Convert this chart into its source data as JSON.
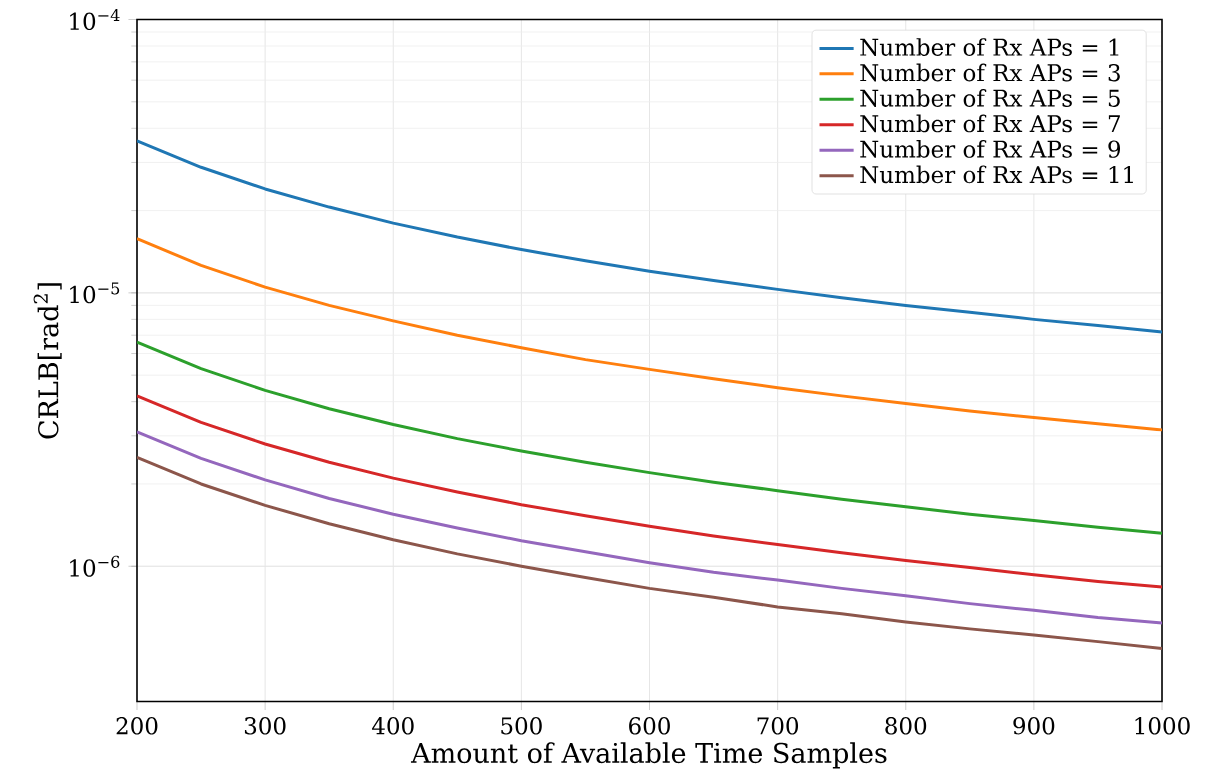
{
  "chart_data": {
    "type": "line",
    "xlabel": "Amount of Available Time Samples",
    "ylabel": "CRLB[rad$^{2}$]",
    "x": [
      200,
      250,
      300,
      350,
      400,
      450,
      500,
      550,
      600,
      650,
      700,
      750,
      800,
      850,
      900,
      950,
      1000
    ],
    "series": [
      {
        "name": "Number of Rx APs = 1",
        "color": "#1f77b4",
        "values": [
          3.6e-05,
          2.88e-05,
          2.4e-05,
          2.06e-05,
          1.8e-05,
          1.6e-05,
          1.44e-05,
          1.31e-05,
          1.2e-05,
          1.11e-05,
          1.03e-05,
          9.6e-06,
          9e-06,
          8.5e-06,
          8e-06,
          7.6e-06,
          7.2e-06
        ]
      },
      {
        "name": "Number of Rx APs = 3",
        "color": "#ff7f0e",
        "values": [
          1.58e-05,
          1.26e-05,
          1.05e-05,
          9e-06,
          7.9e-06,
          7e-06,
          6.3e-06,
          5.7e-06,
          5.25e-06,
          4.85e-06,
          4.5e-06,
          4.2e-06,
          3.94e-06,
          3.7e-06,
          3.5e-06,
          3.32e-06,
          3.15e-06
        ]
      },
      {
        "name": "Number of Rx APs = 5",
        "color": "#2ca02c",
        "values": [
          6.6e-06,
          5.28e-06,
          4.4e-06,
          3.77e-06,
          3.3e-06,
          2.93e-06,
          2.64e-06,
          2.4e-06,
          2.2e-06,
          2.03e-06,
          1.89e-06,
          1.76e-06,
          1.65e-06,
          1.55e-06,
          1.47e-06,
          1.39e-06,
          1.32e-06
        ]
      },
      {
        "name": "Number of Rx APs = 7",
        "color": "#d62728",
        "values": [
          4.2e-06,
          3.36e-06,
          2.8e-06,
          2.4e-06,
          2.1e-06,
          1.87e-06,
          1.68e-06,
          1.53e-06,
          1.4e-06,
          1.29e-06,
          1.2e-06,
          1.12e-06,
          1.05e-06,
          9.9e-07,
          9.3e-07,
          8.8e-07,
          8.4e-07
        ]
      },
      {
        "name": "Number of Rx APs = 9",
        "color": "#9467bd",
        "values": [
          3.1e-06,
          2.48e-06,
          2.07e-06,
          1.77e-06,
          1.55e-06,
          1.38e-06,
          1.24e-06,
          1.13e-06,
          1.03e-06,
          9.5e-07,
          8.9e-07,
          8.3e-07,
          7.8e-07,
          7.3e-07,
          6.9e-07,
          6.5e-07,
          6.2e-07
        ]
      },
      {
        "name": "Number of Rx APs = 11",
        "color": "#8c564b",
        "values": [
          2.5e-06,
          2e-06,
          1.67e-06,
          1.43e-06,
          1.25e-06,
          1.11e-06,
          1e-06,
          9.1e-07,
          8.3e-07,
          7.7e-07,
          7.1e-07,
          6.7e-07,
          6.25e-07,
          5.9e-07,
          5.6e-07,
          5.3e-07,
          5e-07
        ]
      }
    ],
    "xlim": [
      200,
      1000
    ],
    "xticks": [
      200,
      300,
      400,
      500,
      600,
      700,
      800,
      900,
      1000
    ],
    "ylim": [
      3.2e-07,
      0.0001
    ],
    "yticks": [
      {
        "value": 1e-06,
        "label": "10$^{−6}$"
      },
      {
        "value": 1e-05,
        "label": "10$^{−5}$"
      },
      {
        "value": 0.0001,
        "label": "10$^{−4}$"
      }
    ],
    "log": "y",
    "grid": true,
    "legend": "top right",
    "marker": "none",
    "line_style": "solid"
  }
}
